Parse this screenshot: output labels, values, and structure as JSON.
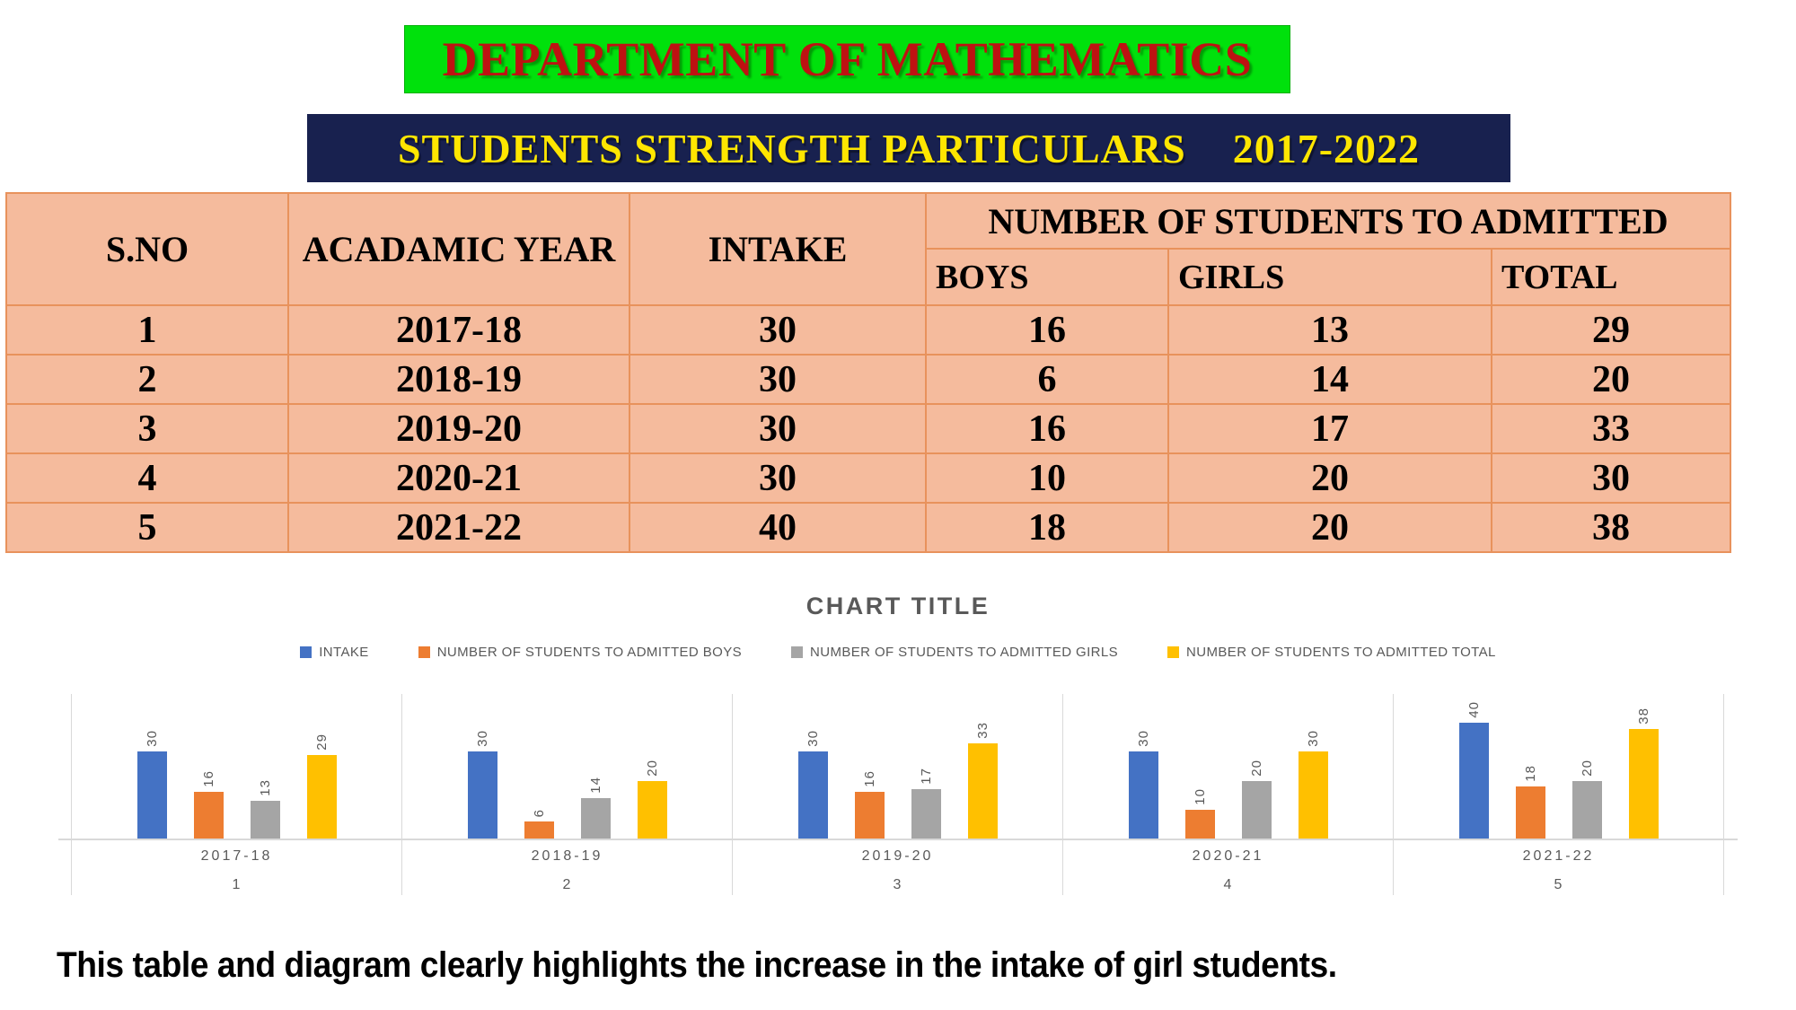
{
  "banner": {
    "title": "DEPARTMENT OF MATHEMATICS"
  },
  "subbanner": {
    "title": "STUDENTS STRENGTH PARTICULARS",
    "years": "2017-2022"
  },
  "table": {
    "headers": {
      "sno": "S.NO",
      "year": "ACADAMIC YEAR",
      "intake": "INTAKE",
      "admitted_group": "NUMBER OF STUDENTS TO ADMITTED",
      "boys": "BOYS",
      "girls": "GIRLS",
      "total": "TOTAL"
    },
    "rows": [
      [
        "1",
        "2017-18",
        "30",
        "16",
        "13",
        "29"
      ],
      [
        "2",
        "2018-19",
        "30",
        "6",
        "14",
        "20"
      ],
      [
        "3",
        "2019-20",
        "30",
        "16",
        "17",
        "33"
      ],
      [
        "4",
        "2020-21",
        "30",
        "10",
        "20",
        "30"
      ],
      [
        "5",
        "2021-22",
        "40",
        "18",
        "20",
        "38"
      ]
    ]
  },
  "chart_data": {
    "type": "bar",
    "title": "CHART TITLE",
    "categories": [
      "2017-18",
      "2018-19",
      "2019-20",
      "2020-21",
      "2021-22"
    ],
    "category_numbers": [
      "1",
      "2",
      "3",
      "4",
      "5"
    ],
    "series": [
      {
        "name": "INTAKE",
        "color": "#4472C4",
        "values": [
          30,
          30,
          30,
          30,
          40
        ]
      },
      {
        "name": "NUMBER OF STUDENTS TO ADMITTED BOYS",
        "color": "#ED7D31",
        "values": [
          16,
          6,
          16,
          10,
          18
        ]
      },
      {
        "name": "NUMBER OF STUDENTS TO ADMITTED GIRLS",
        "color": "#A5A5A5",
        "values": [
          13,
          14,
          17,
          20,
          20
        ]
      },
      {
        "name": "NUMBER OF STUDENTS TO ADMITTED TOTAL",
        "color": "#FFC000",
        "values": [
          29,
          20,
          33,
          30,
          38
        ]
      }
    ],
    "xlabel": "",
    "ylabel": "",
    "ylim": [
      0,
      50
    ],
    "value_axis_shown": false,
    "data_labels": "rotated-vertical",
    "legend_position": "top",
    "gridlines": "vertical-panel-separators-only"
  },
  "footer": {
    "note": "This table and diagram clearly highlights the increase in the intake of girl students."
  },
  "colors": {
    "banner-green-bg": "#00E10C",
    "banner-title": "#BE1212",
    "subbanner-bg": "#18214F",
    "subbanner-text": "#FFE600",
    "table-fill": "#F5BB9D",
    "table-border": "#E8925C",
    "chart-text": "#595959",
    "grid-line": "#D9D9D9"
  }
}
